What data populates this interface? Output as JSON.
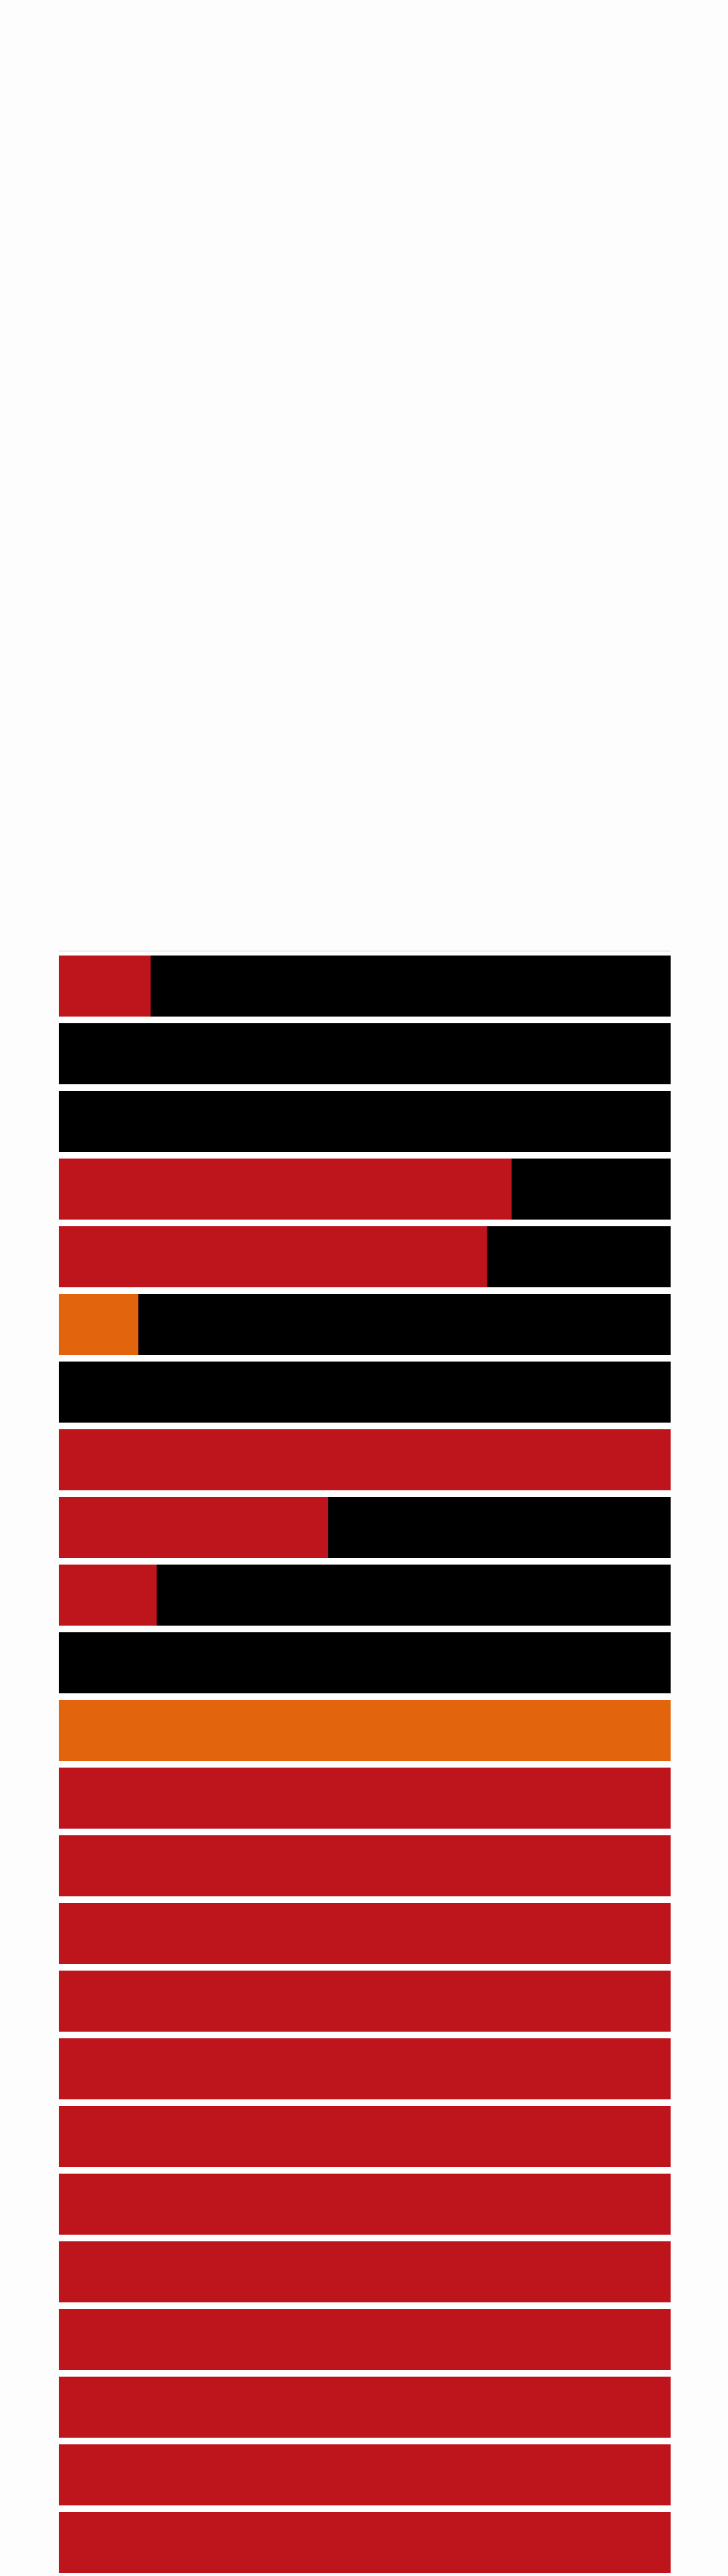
{
  "chart_data": {
    "type": "bar",
    "orientation": "horizontal",
    "stacked": true,
    "title": "",
    "xlabel": "",
    "ylabel": "",
    "xlim": [
      0,
      1
    ],
    "grid": false,
    "legend": "none",
    "background_color": "#000000",
    "rows": [
      {
        "value": 0.15,
        "color": "#be141c"
      },
      {
        "value": 0.0,
        "color": "#be141c"
      },
      {
        "value": 0.0,
        "color": "#be141c"
      },
      {
        "value": 0.74,
        "color": "#be141c"
      },
      {
        "value": 0.7,
        "color": "#be141c"
      },
      {
        "value": 0.13,
        "color": "#e2640c"
      },
      {
        "value": 0.0,
        "color": "#be141c"
      },
      {
        "value": 1.0,
        "color": "#be141c"
      },
      {
        "value": 0.44,
        "color": "#be141c"
      },
      {
        "value": 0.16,
        "color": "#be141c"
      },
      {
        "value": 0.0,
        "color": "#be141c"
      },
      {
        "value": 1.0,
        "color": "#e2640c"
      },
      {
        "value": 1.0,
        "color": "#be141c"
      },
      {
        "value": 1.0,
        "color": "#be141c"
      },
      {
        "value": 1.0,
        "color": "#be141c"
      },
      {
        "value": 1.0,
        "color": "#be141c"
      },
      {
        "value": 1.0,
        "color": "#be141c"
      },
      {
        "value": 1.0,
        "color": "#be141c"
      },
      {
        "value": 1.0,
        "color": "#be141c"
      },
      {
        "value": 1.0,
        "color": "#be141c"
      },
      {
        "value": 1.0,
        "color": "#be141c"
      },
      {
        "value": 1.0,
        "color": "#be141c"
      },
      {
        "value": 1.0,
        "color": "#be141c"
      },
      {
        "value": 1.0,
        "color": "#be141c"
      }
    ]
  }
}
